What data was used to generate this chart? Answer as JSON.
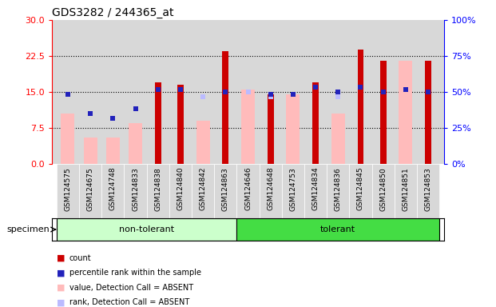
{
  "title": "GDS3282 / 244365_at",
  "categories": [
    "GSM124575",
    "GSM124675",
    "GSM124748",
    "GSM124833",
    "GSM124838",
    "GSM124840",
    "GSM124842",
    "GSM124863",
    "GSM124646",
    "GSM124648",
    "GSM124753",
    "GSM124834",
    "GSM124836",
    "GSM124845",
    "GSM124850",
    "GSM124851",
    "GSM124853"
  ],
  "groups": [
    "non-tolerant",
    "non-tolerant",
    "non-tolerant",
    "non-tolerant",
    "non-tolerant",
    "non-tolerant",
    "non-tolerant",
    "non-tolerant",
    "tolerant",
    "tolerant",
    "tolerant",
    "tolerant",
    "tolerant",
    "tolerant",
    "tolerant",
    "tolerant",
    "tolerant"
  ],
  "group_colors": {
    "non-tolerant": "#ccffcc",
    "tolerant": "#44dd44"
  },
  "count_values": [
    0,
    0,
    0,
    0,
    17.0,
    16.5,
    0,
    23.5,
    0,
    14.5,
    0,
    17.0,
    0,
    23.8,
    21.5,
    0,
    21.5
  ],
  "percentile_values": [
    14.5,
    10.5,
    9.5,
    11.5,
    15.5,
    15.5,
    0,
    15.0,
    0,
    14.5,
    14.5,
    16.0,
    15.0,
    16.0,
    15.0,
    15.5,
    15.0
  ],
  "value_absent": [
    10.5,
    5.5,
    5.5,
    8.5,
    0,
    0,
    9.0,
    0,
    15.5,
    0,
    14.5,
    0,
    10.5,
    0,
    0,
    21.5,
    0
  ],
  "rank_absent": [
    0,
    10.5,
    9.5,
    11.5,
    0,
    0,
    14.0,
    0,
    15.0,
    14.0,
    0,
    0,
    14.0,
    0,
    0,
    0,
    0
  ],
  "ylim_left": [
    0,
    30
  ],
  "ylim_right": [
    0,
    100
  ],
  "yticks_left": [
    0,
    7.5,
    15,
    22.5,
    30
  ],
  "yticks_right": [
    0,
    25,
    50,
    75,
    100
  ],
  "color_count": "#cc0000",
  "color_percentile": "#2222bb",
  "color_value_absent": "#ffbbbb",
  "color_rank_absent": "#bbbbff",
  "cell_bg": "#d8d8d8",
  "plot_bg": "#d8d8d8"
}
